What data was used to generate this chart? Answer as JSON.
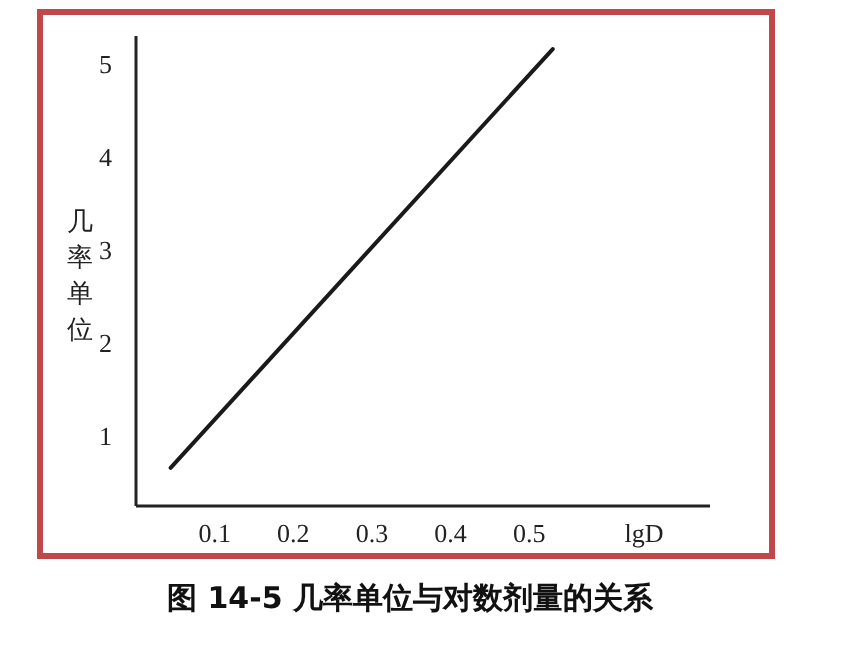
{
  "chart_data": {
    "type": "line",
    "title": "图 14-5  几率单位与对数剂量的关系",
    "xlabel": "lgD",
    "ylabel": "几率单位",
    "x": [
      0.044,
      0.53
    ],
    "series": [
      {
        "color": "#1a1a1a",
        "values": [
          0.66,
          5.16
        ]
      }
    ],
    "xlim": [
      0,
      0.73
    ],
    "xticks": [
      0.1,
      0.2,
      0.3,
      0.4,
      0.5
    ],
    "ylim": [
      0.25,
      5.3
    ],
    "yticks": [
      1,
      2,
      3,
      4,
      5
    ],
    "grid": false,
    "marker": "none",
    "line_style": "solid"
  }
}
